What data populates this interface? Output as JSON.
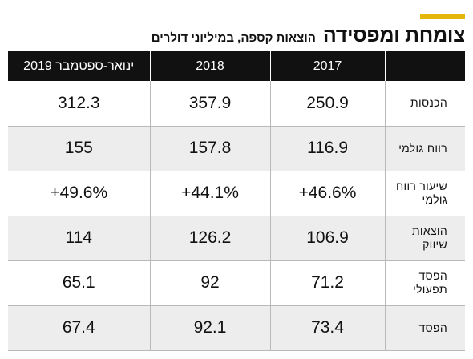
{
  "header": {
    "title": "צומחת ומפסידה",
    "subtitle": "הוצאות קספה, במיליוני דולרים"
  },
  "table": {
    "columns": [
      "2017",
      "2018",
      "ינואר-ספטמבר 2019"
    ],
    "rows": [
      {
        "label": "הכנסות",
        "values": [
          "250.9",
          "357.9",
          "312.3"
        ]
      },
      {
        "label": "רווח גולמי",
        "values": [
          "116.9",
          "157.8",
          "155"
        ]
      },
      {
        "label": "שיעור רווח גולמי",
        "values": [
          "+46.6%",
          "+44.1%",
          "+49.6%"
        ]
      },
      {
        "label": "הוצאות שיווק",
        "values": [
          "106.9",
          "126.2",
          "114"
        ]
      },
      {
        "label": "הפסד תפעולי",
        "values": [
          "71.2",
          "92",
          "65.1"
        ]
      },
      {
        "label": "הפסד",
        "values": [
          "73.4",
          "92.1",
          "67.4"
        ]
      }
    ]
  },
  "colors": {
    "accent": "#e3b609",
    "header_bg": "#111111",
    "row_shade": "#ededed",
    "divider": "#b9b9b9"
  }
}
